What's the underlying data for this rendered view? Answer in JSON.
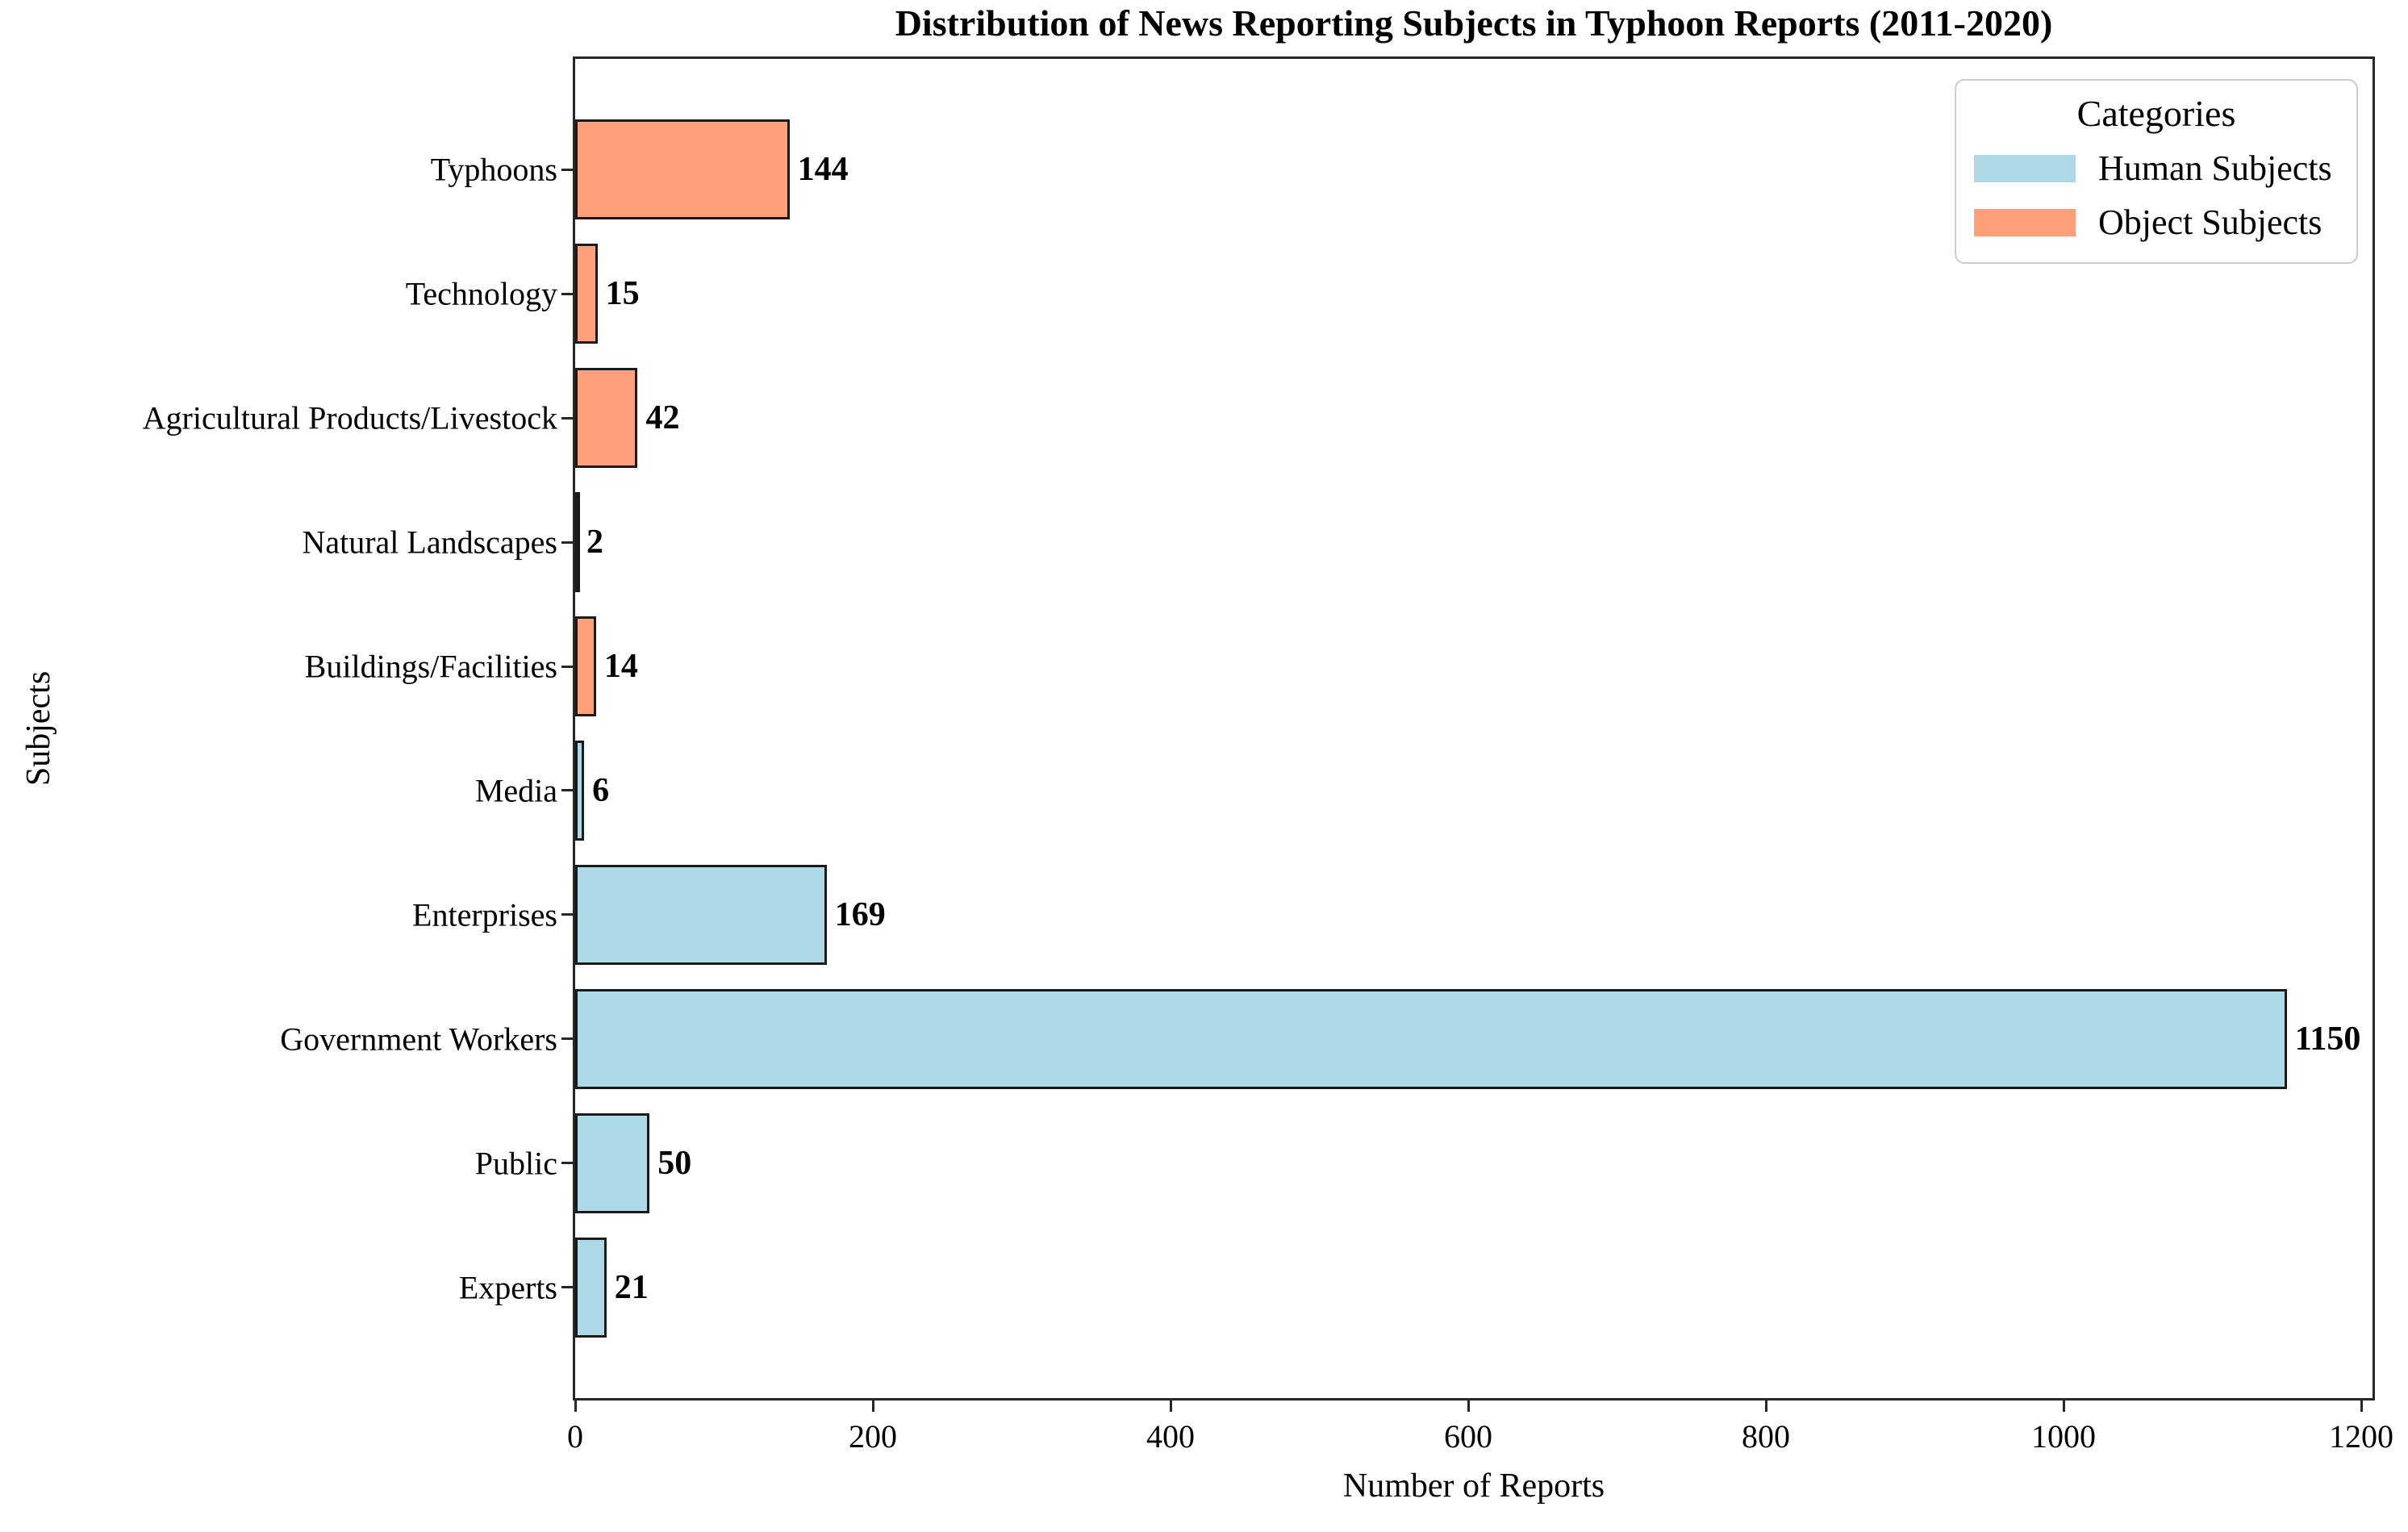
{
  "chart_data": {
    "type": "bar",
    "orientation": "horizontal",
    "title": "Distribution of News Reporting Subjects in Typhoon Reports (2011-2020)",
    "xlabel": "Number of Reports",
    "ylabel": "Subjects",
    "xlim": [
      0,
      1207.5
    ],
    "xticks": [
      0,
      200,
      400,
      600,
      800,
      1000,
      1200
    ],
    "grid": false,
    "legend": {
      "title": "Categories",
      "position": "upper right",
      "entries": [
        {
          "label": "Human Subjects",
          "color": "#ADD8E6"
        },
        {
          "label": "Object Subjects",
          "color": "#FFA07A"
        }
      ]
    },
    "categories": [
      "Typhoons",
      "Technology",
      "Agricultural Products/Livestock",
      "Natural Landscapes",
      "Buildings/Facilities",
      "Media",
      "Enterprises",
      "Government Workers",
      "Public",
      "Experts"
    ],
    "bars": [
      {
        "label": "Typhoons",
        "value": 144,
        "category": "Object Subjects",
        "color": "#FFA07A"
      },
      {
        "label": "Technology",
        "value": 15,
        "category": "Object Subjects",
        "color": "#FFA07A"
      },
      {
        "label": "Agricultural Products/Livestock",
        "value": 42,
        "category": "Object Subjects",
        "color": "#FFA07A"
      },
      {
        "label": "Natural Landscapes",
        "value": 2,
        "category": "Object Subjects",
        "color": "#FFA07A"
      },
      {
        "label": "Buildings/Facilities",
        "value": 14,
        "category": "Object Subjects",
        "color": "#FFA07A"
      },
      {
        "label": "Media",
        "value": 6,
        "category": "Human Subjects",
        "color": "#ADD8E6"
      },
      {
        "label": "Enterprises",
        "value": 169,
        "category": "Human Subjects",
        "color": "#ADD8E6"
      },
      {
        "label": "Government Workers",
        "value": 1150,
        "category": "Human Subjects",
        "color": "#ADD8E6"
      },
      {
        "label": "Public",
        "value": 50,
        "category": "Human Subjects",
        "color": "#ADD8E6"
      },
      {
        "label": "Experts",
        "value": 21,
        "category": "Human Subjects",
        "color": "#ADD8E6"
      }
    ],
    "bar_edge_color": "#1a1a1a"
  }
}
